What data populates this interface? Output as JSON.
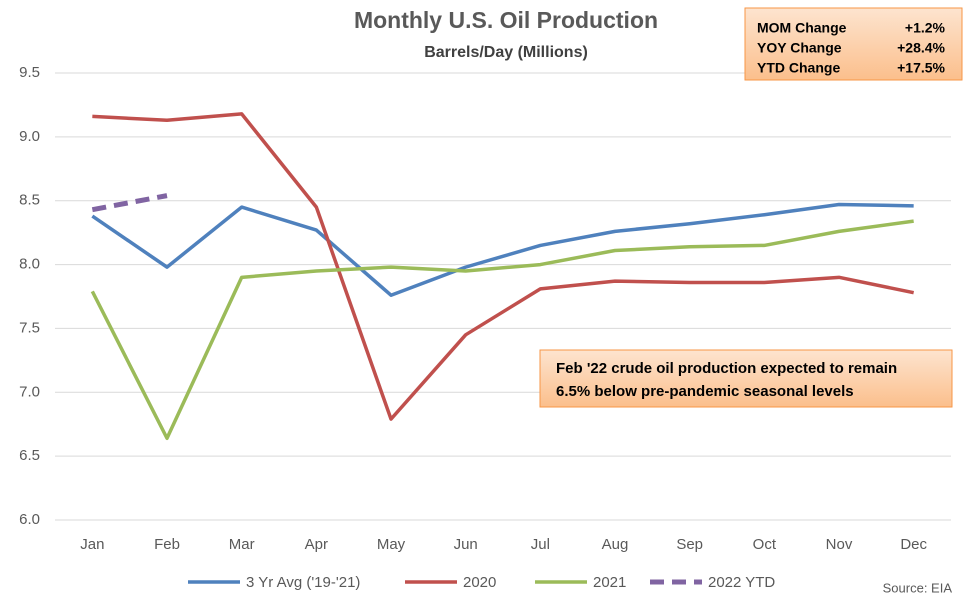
{
  "chart_data": {
    "type": "line",
    "title": "Monthly U.S. Oil Production",
    "subtitle": "Barrels/Day (Millions)",
    "categories": [
      "Jan",
      "Feb",
      "Mar",
      "Apr",
      "May",
      "Jun",
      "Jul",
      "Aug",
      "Sep",
      "Oct",
      "Nov",
      "Dec"
    ],
    "series": [
      {
        "name": "3 Yr Avg ('19-'21)",
        "color": "#4f81bd",
        "values": [
          8.38,
          7.98,
          8.45,
          8.27,
          7.76,
          7.98,
          8.15,
          8.26,
          8.32,
          8.39,
          8.47,
          8.46
        ]
      },
      {
        "name": "2020",
        "color": "#c0504d",
        "values": [
          9.16,
          9.13,
          9.18,
          8.45,
          6.79,
          7.45,
          7.81,
          7.87,
          7.86,
          7.86,
          7.9,
          7.78
        ]
      },
      {
        "name": "2021",
        "color": "#9bbb59",
        "values": [
          7.79,
          6.64,
          7.9,
          7.95,
          7.98,
          7.95,
          8.0,
          8.11,
          8.14,
          8.15,
          8.26,
          8.34
        ]
      },
      {
        "name": "2022 YTD",
        "color": "#8064a2",
        "dashed": true,
        "values": [
          8.43,
          8.54,
          null,
          null,
          null,
          null,
          null,
          null,
          null,
          null,
          null,
          null
        ]
      }
    ],
    "ylim": [
      6.0,
      9.5
    ],
    "yticks": [
      {
        "value": 6,
        "label": "6.0"
      },
      6.5,
      {
        "value": 7,
        "label": "7.0"
      },
      7.5,
      {
        "value": 8,
        "label": "8.0"
      },
      8.5,
      {
        "value": 9,
        "label": "9.0"
      },
      9.5
    ],
    "grid": true,
    "legend": "bottom",
    "stats": [
      {
        "label": "MOM Change",
        "value": "+1.2%"
      },
      {
        "label": "YOY Change",
        "value": "+28.4%"
      },
      {
        "label": "YTD Change",
        "value": "+17.5%"
      }
    ],
    "annotation": [
      "Feb '22 crude oil production expected to remain",
      "6.5% below pre-pandemic seasonal levels"
    ],
    "source": "Source: EIA"
  }
}
